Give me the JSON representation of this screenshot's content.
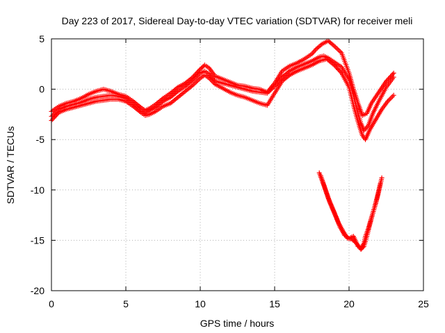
{
  "chart_data": {
    "type": "scatter",
    "title": "Day 223 of 2017, Sidereal Day-to-day VTEC variation (SDTVAR) for receiver meli",
    "xlabel": "GPS time / hours",
    "ylabel": "SDTVAR / TECUs",
    "xlim": [
      0,
      25
    ],
    "ylim": [
      -20,
      5
    ],
    "xticks": [
      0,
      5,
      10,
      15,
      20,
      25
    ],
    "yticks": [
      -20,
      -15,
      -10,
      -5,
      0,
      5
    ],
    "grid": true,
    "marker": "+",
    "color": "#ff0000",
    "series": [
      {
        "name": "upper-band-main",
        "x": [
          0,
          0.5,
          1,
          1.5,
          2,
          2.5,
          3,
          3.5,
          4,
          4.5,
          5,
          5.5,
          6,
          6.3,
          6.6,
          7,
          7.5,
          8,
          8.5,
          9,
          9.5,
          10,
          10.3,
          10.6,
          11,
          11.5,
          12,
          12.5,
          13,
          13.5,
          14,
          14.5,
          15,
          15.5,
          16,
          16.5,
          17,
          17.5,
          18,
          18.3,
          18.6,
          19,
          19.5,
          20,
          20.3,
          20.6,
          20.8,
          21,
          21.3,
          21.6,
          22,
          22.5,
          23
        ],
        "y": [
          -2.7,
          -2.0,
          -1.7,
          -1.5,
          -1.3,
          -1.0,
          -0.8,
          -0.7,
          -0.6,
          -0.7,
          -0.9,
          -1.4,
          -2.1,
          -2.4,
          -2.1,
          -1.8,
          -1.2,
          -0.8,
          -0.2,
          0.3,
          0.9,
          1.6,
          1.8,
          1.5,
          0.8,
          0.6,
          0.4,
          0.2,
          0.0,
          -0.2,
          -0.3,
          -0.4,
          0.3,
          1.2,
          1.8,
          2.2,
          2.5,
          2.8,
          3.2,
          3.3,
          3.1,
          2.7,
          2.2,
          1.0,
          -0.6,
          -2.4,
          -3.4,
          -4.1,
          -3.6,
          -2.4,
          -1.2,
          0.2,
          1.2
        ]
      },
      {
        "name": "upper-band-high",
        "x": [
          0,
          0.5,
          1,
          1.5,
          2,
          2.5,
          3,
          3.5,
          4,
          4.5,
          5,
          5.5,
          6,
          6.3,
          6.6,
          7,
          7.5,
          8,
          8.5,
          9,
          9.5,
          10,
          10.3,
          10.6,
          11,
          11.5,
          12,
          12.5,
          13,
          13.5,
          14,
          14.5,
          15,
          15.5,
          16,
          16.5,
          17,
          17.5,
          17.8,
          18.2,
          18.6,
          19,
          19.5,
          20,
          20.3,
          20.6,
          20.9,
          21.2,
          21.5,
          22,
          22.5,
          23
        ],
        "y": [
          -2.2,
          -1.7,
          -1.4,
          -1.2,
          -0.9,
          -0.5,
          -0.2,
          0.0,
          -0.2,
          -0.5,
          -0.7,
          -1.2,
          -1.8,
          -2.1,
          -1.9,
          -1.5,
          -0.9,
          -0.4,
          0.2,
          0.6,
          1.2,
          2.0,
          2.4,
          2.1,
          1.3,
          1.0,
          0.7,
          0.4,
          0.3,
          0.1,
          0.0,
          -0.3,
          0.6,
          1.8,
          2.3,
          2.6,
          3.0,
          3.5,
          4.0,
          4.5,
          4.8,
          4.3,
          3.6,
          1.6,
          0.0,
          -1.4,
          -2.6,
          -2.4,
          -1.4,
          -0.3,
          0.8,
          1.6
        ]
      },
      {
        "name": "upper-band-low",
        "x": [
          0,
          0.5,
          1,
          1.5,
          2,
          2.5,
          3,
          3.5,
          4,
          4.5,
          5,
          5.5,
          6,
          6.3,
          6.6,
          7,
          7.5,
          8,
          8.5,
          9,
          9.5,
          10,
          10.3,
          10.6,
          11,
          11.5,
          12,
          12.5,
          13,
          13.5,
          14,
          14.5,
          15,
          15.5,
          16,
          16.5,
          17,
          17.5,
          18,
          18.5,
          19,
          19.5,
          20,
          20.3,
          20.6,
          20.9,
          21.1,
          21.4,
          21.8,
          22.2,
          22.6,
          23
        ],
        "y": [
          -3.1,
          -2.3,
          -2.0,
          -1.8,
          -1.6,
          -1.4,
          -1.2,
          -1.1,
          -1.0,
          -1.0,
          -1.2,
          -1.7,
          -2.3,
          -2.6,
          -2.5,
          -2.2,
          -1.7,
          -1.4,
          -0.8,
          -0.2,
          0.4,
          1.1,
          1.4,
          1.1,
          0.5,
          0.1,
          -0.3,
          -0.6,
          -0.8,
          -1.1,
          -1.4,
          -1.6,
          -0.4,
          0.8,
          1.4,
          1.8,
          2.1,
          2.4,
          2.8,
          3.0,
          2.4,
          1.6,
          0.2,
          -1.6,
          -3.2,
          -4.6,
          -5.0,
          -4.0,
          -3.0,
          -2.0,
          -1.2,
          -0.6
        ]
      },
      {
        "name": "lower-band-1",
        "x": [
          18.0,
          18.3,
          18.6,
          19.0,
          19.3,
          19.6,
          19.9,
          20.2,
          20.5,
          20.8,
          21.0,
          21.2,
          21.4,
          21.6,
          21.8,
          22.0,
          22.2
        ],
        "y": [
          -8.3,
          -9.5,
          -10.8,
          -12.2,
          -13.3,
          -14.1,
          -14.8,
          -14.9,
          -15.3,
          -15.9,
          -15.6,
          -14.6,
          -13.4,
          -12.3,
          -11.3,
          -10.1,
          -8.8
        ]
      },
      {
        "name": "lower-band-2",
        "x": [
          18.1,
          18.4,
          18.7,
          19.1,
          19.4,
          19.7,
          20.0,
          20.3,
          20.6,
          20.8,
          21.0,
          21.1,
          21.3,
          21.5,
          21.7,
          21.9,
          22.1
        ],
        "y": [
          -8.6,
          -9.9,
          -11.2,
          -12.6,
          -13.7,
          -14.5,
          -14.8,
          -14.6,
          -15.6,
          -15.8,
          -15.3,
          -14.6,
          -13.8,
          -12.8,
          -11.8,
          -10.7,
          -9.4
        ]
      }
    ]
  }
}
